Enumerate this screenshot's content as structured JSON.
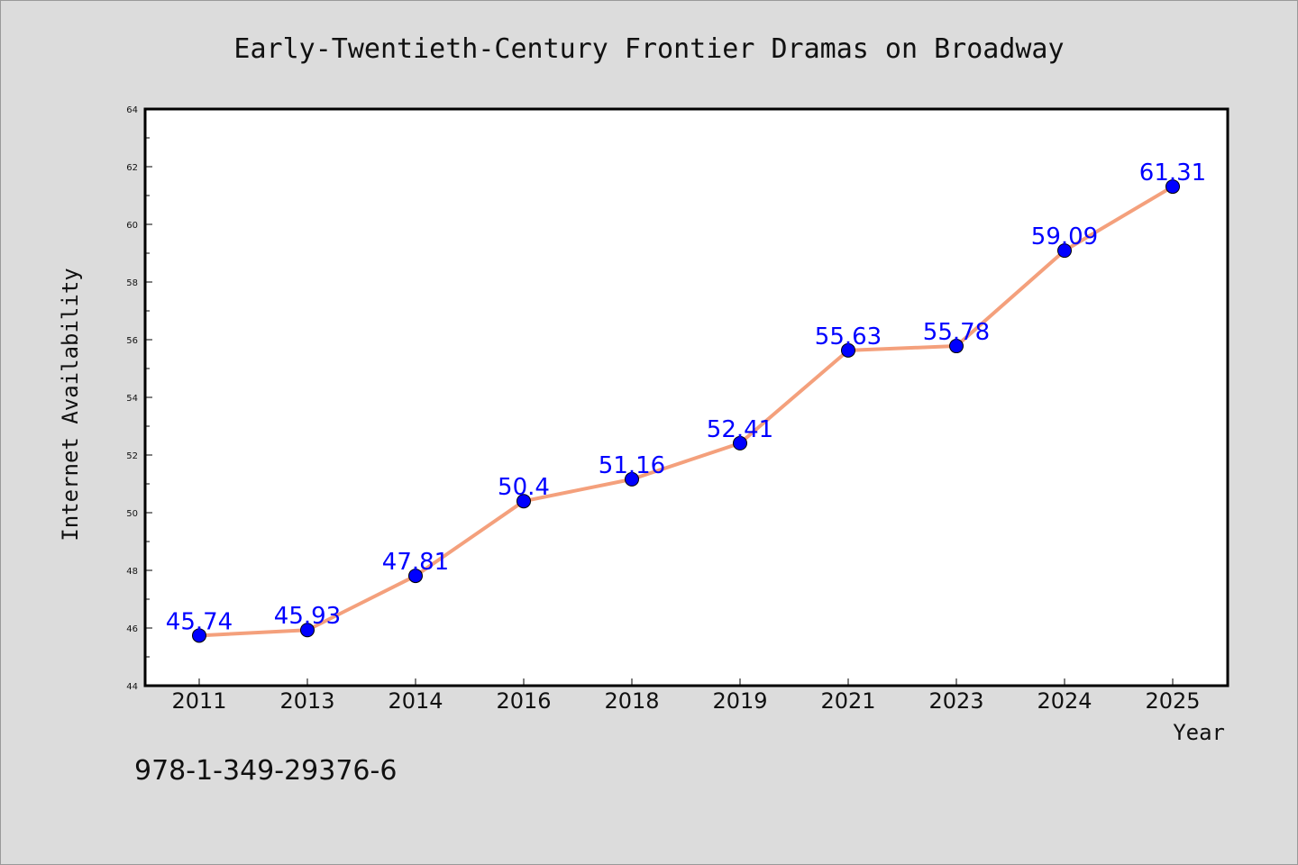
{
  "chart_data": {
    "type": "line",
    "title": "Early-Twentieth-Century Frontier Dramas on Broadway",
    "xlabel": "Year",
    "ylabel": "Internet Availability",
    "categories": [
      "2011",
      "2013",
      "2014",
      "2016",
      "2018",
      "2019",
      "2021",
      "2023",
      "2024",
      "2025"
    ],
    "series": [
      {
        "values": [
          45.74,
          45.93,
          47.81,
          50.4,
          51.16,
          52.41,
          55.63,
          55.78,
          59.09,
          61.31
        ],
        "labels": [
          "45.74",
          "45.93",
          "47.81",
          "50.4",
          "51.16",
          "52.41",
          "55.63",
          "55.78",
          "59.09",
          "61.31"
        ],
        "line_color": "#f4a07c",
        "marker_color": "#0000ff"
      }
    ],
    "ylim": [
      44,
      64
    ],
    "yticks": [
      "44",
      "46",
      "48",
      "50",
      "52",
      "54",
      "56",
      "58",
      "60",
      "62",
      "64"
    ],
    "grid": false,
    "legend": "none",
    "label_color": "#0000ff"
  },
  "footer": {
    "isbn": "978-1-349-29376-6"
  }
}
